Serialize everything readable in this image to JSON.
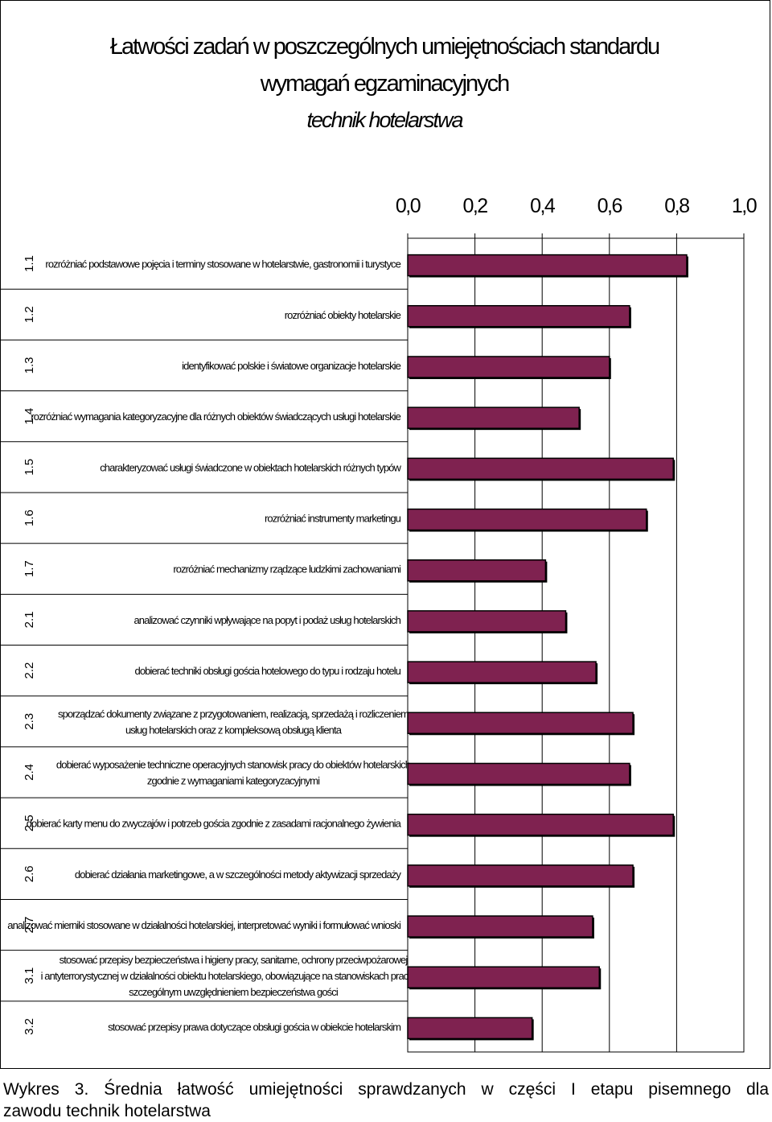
{
  "title": {
    "line1": "Łatwości zadań w poszczególnych umiejętnościach standardu",
    "line2": "wymagań egzaminacyjnych",
    "line3": "technik hotelarstwa"
  },
  "caption": {
    "line1": "Wykres 3. Średnia łatwość umiejętności sprawdzanych w części I etapu pisemnego dla",
    "line2": "zawodu technik hotelarstwa"
  },
  "colors": {
    "bar": "#7f2250",
    "border": "#000000",
    "grid": "#000000"
  },
  "chart_data": {
    "type": "bar",
    "orientation": "horizontal",
    "xlim": [
      0,
      1
    ],
    "ticks": [
      "0,0",
      "0,2",
      "0,4",
      "0,6",
      "0,8",
      "1,0"
    ],
    "tick_values": [
      0,
      0.2,
      0.4,
      0.6,
      0.8,
      1.0
    ],
    "grid": true,
    "categories": [
      "1.1",
      "1.2",
      "1.3",
      "1.4",
      "1.5",
      "1.6",
      "1.7",
      "2.1",
      "2.2",
      "2.3",
      "2.4",
      "2.5",
      "2.6",
      "2.7",
      "3.1",
      "3.2"
    ],
    "labels": [
      [
        "rozróżniać podstawowe pojęcia i terminy stosowane w hotelarstwie, gastronomii i turystyce"
      ],
      [
        "rozróżniać obiekty hotelarskie"
      ],
      [
        "identyfikować polskie i światowe organizacje hotelarskie"
      ],
      [
        "rozróżniać wymagania kategoryzacyjne dla różnych obiektów świadczących usługi hotelarskie"
      ],
      [
        "charakteryzować usługi świadczone w obiektach hotelarskich różnych typów"
      ],
      [
        "rozróżniać instrumenty marketingu"
      ],
      [
        "rozróżniać mechanizmy rządzące ludzkimi zachowaniami"
      ],
      [
        "analizować czynniki wpływające na popyt i podaż usług hotelarskich"
      ],
      [
        "dobierać techniki obsługi gościa hotelowego do typu i rodzaju hotelu"
      ],
      [
        "sporządzać dokumenty związane z przygotowaniem, realizacją, sprzedażą i rozliczeniem",
        "usług hotelarskich oraz z kompleksową obsługą klienta"
      ],
      [
        "dobierać wyposażenie techniczne operacyjnych stanowisk pracy do obiektów hotelarskich",
        "zgodnie z wymaganiami kategoryzacyjnymi"
      ],
      [
        "dobierać karty menu do zwyczajów i potrzeb gościa zgodnie z zasadami racjonalnego żywienia"
      ],
      [
        "dobierać działania marketingowe, a w szczególności metody aktywizacji sprzedaży"
      ],
      [
        "analizować mierniki stosowane w działalności hotelarskiej, interpretować wyniki i formułować wnioski"
      ],
      [
        "stosować przepisy bezpieczeństwa i higieny pracy, sanitarne, ochrony przeciwpożarowej",
        "i antyterrorystycznej w działalności obiektu hotelarskiego, obowiązujące na stanowiskach pracy, ze",
        "szczególnym uwzględnieniem bezpieczeństwa gości"
      ],
      [
        "stosować przepisy prawa dotyczące obsługi gościa w obiekcie hotelarskim"
      ]
    ],
    "values": [
      0.83,
      0.66,
      0.6,
      0.51,
      0.79,
      0.71,
      0.41,
      0.47,
      0.56,
      0.67,
      0.66,
      0.79,
      0.67,
      0.55,
      0.57,
      0.37
    ]
  }
}
